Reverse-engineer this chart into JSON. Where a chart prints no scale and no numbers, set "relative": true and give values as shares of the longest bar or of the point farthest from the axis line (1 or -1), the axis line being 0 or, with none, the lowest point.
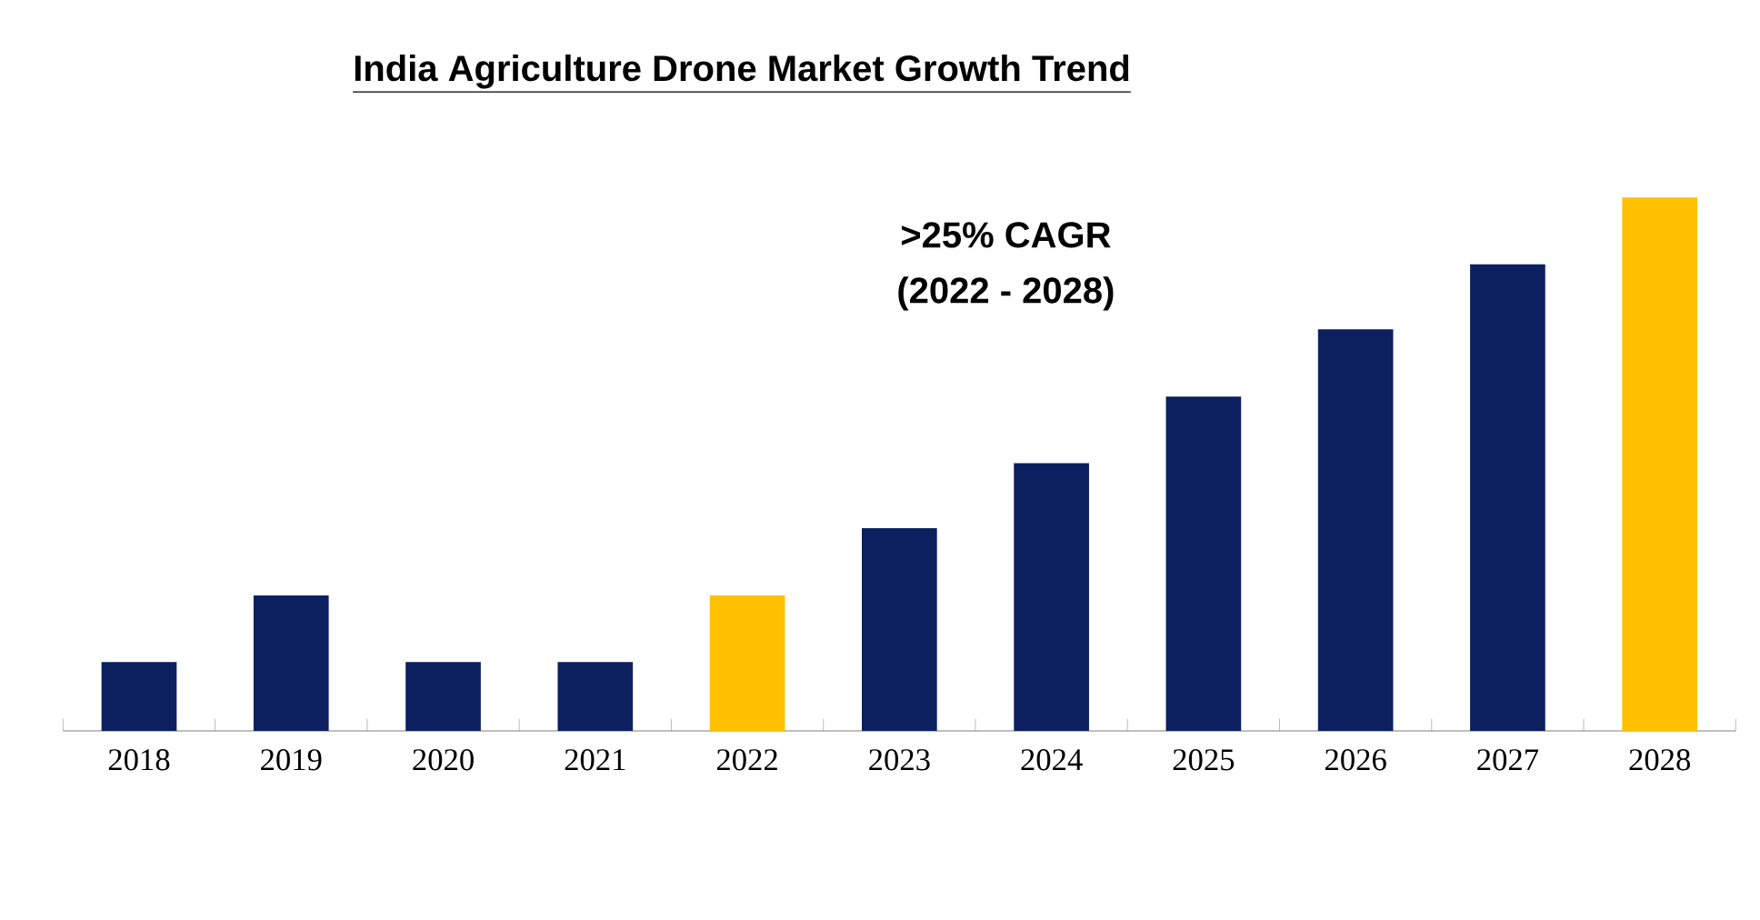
{
  "chart_data": {
    "type": "bar",
    "title": "India Agriculture Drone Market Growth Trend",
    "relative": true,
    "categories": [
      "2018",
      "2019",
      "2020",
      "2021",
      "2022",
      "2023",
      "2024",
      "2025",
      "2026",
      "2027",
      "2028"
    ],
    "values": [
      0.129,
      0.254,
      0.129,
      0.129,
      0.254,
      0.38,
      0.502,
      0.627,
      0.753,
      0.875,
      1
    ],
    "colors": [
      "#0c1f5e",
      "#0c1f5e",
      "#0c1f5e",
      "#0c1f5e",
      "#ffc000",
      "#0c1f5e",
      "#0c1f5e",
      "#0c1f5e",
      "#0c1f5e",
      "#0c1f5e",
      "#ffc000"
    ],
    "annotations": [
      ">25% CAGR",
      "(2022 - 2028)"
    ]
  }
}
